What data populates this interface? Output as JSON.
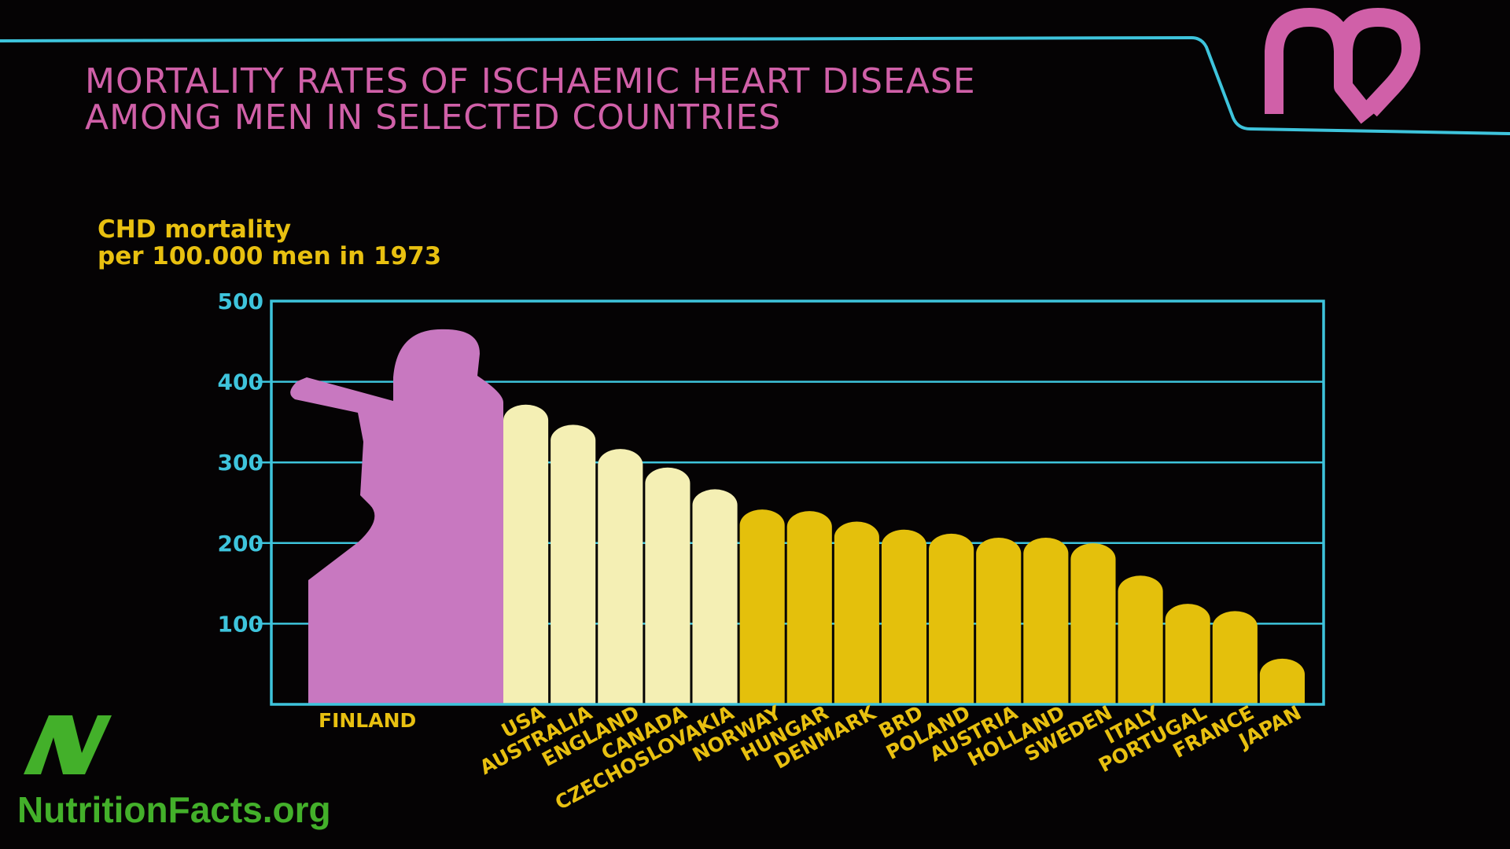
{
  "colors": {
    "background": "#050304",
    "frame_line": "#3ec4dc",
    "title": "#d060a8",
    "finland_fill": "#c878c0",
    "highlight_fill": "#f4efb4",
    "bar_fill": "#e4c00c",
    "label": "#e8c010",
    "brand_green": "#43b02a"
  },
  "chart_data": {
    "type": "bar",
    "title_lines": [
      "MORTALITY RATES OF ISCHAEMIC HEART DISEASE",
      "AMONG MEN IN SELECTED COUNTRIES"
    ],
    "ylabel_lines": [
      "CHD mortality",
      "per 100.000 men in 1973"
    ],
    "ylim": [
      0,
      500
    ],
    "yticks": [
      100,
      200,
      300,
      400,
      500
    ],
    "grid": true,
    "categories": [
      "FINLAND",
      "USA",
      "AUSTRALIA",
      "ENGLAND",
      "CANADA",
      "CZECHOSLOVAKIA",
      "NORWAY",
      "HUNGAR",
      "DENMARK",
      "BRD",
      "POLAND",
      "AUSTRIA",
      "HOLLAND",
      "SWEDEN",
      "ITALY",
      "PORTUGAL",
      "FRANCE",
      "JAPAN"
    ],
    "values": [
      465,
      380,
      355,
      325,
      302,
      275,
      250,
      248,
      235,
      225,
      220,
      215,
      215,
      208,
      168,
      133,
      124,
      65
    ],
    "bar_groups": [
      "finland",
      "highlight",
      "highlight",
      "highlight",
      "highlight",
      "highlight",
      "standard",
      "standard",
      "standard",
      "standard",
      "standard",
      "standard",
      "standard",
      "standard",
      "standard",
      "standard",
      "standard",
      "standard"
    ]
  },
  "logo": {
    "icon": "heart-logo-icon"
  },
  "watermark": {
    "text": "NutritionFacts.org",
    "icon": "nutritionfacts-n-logo-icon"
  }
}
